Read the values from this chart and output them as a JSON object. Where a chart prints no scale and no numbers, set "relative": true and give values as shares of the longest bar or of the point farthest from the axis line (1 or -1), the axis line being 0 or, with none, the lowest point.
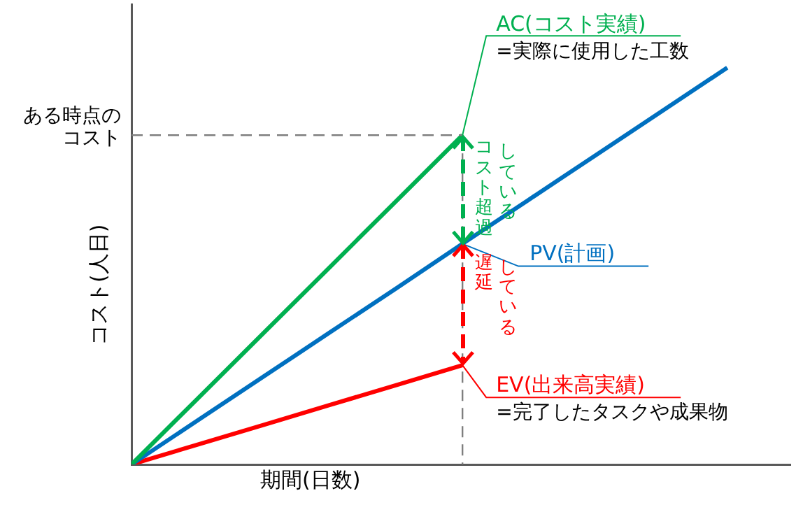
{
  "chart_data": {
    "type": "line",
    "relative": true,
    "xlabel": "期間(日数)",
    "ylabel": "コスト(人日)",
    "legend": false,
    "grid": false,
    "marker": "none",
    "line_style": "solid",
    "categories": [
      null,
      null,
      null,
      null,
      null,
      null,
      null,
      null,
      null,
      null
    ],
    "series": [
      {
        "name": "AC(コスト実績)",
        "color": "#00b050",
        "values": [
          0,
          0.166,
          0.332,
          0.498,
          0.664,
          0.83,
          null,
          null,
          null,
          null
        ]
      },
      {
        "name": "PV(計画)",
        "color": "#0070c0",
        "values": [
          0,
          0.111,
          0.222,
          0.333,
          0.444,
          0.556,
          0.667,
          0.778,
          0.889,
          1
        ]
      },
      {
        "name": "EV(出来高実績)",
        "color": "#ff0000",
        "values": [
          0,
          0.05,
          0.1,
          0.15,
          0.2,
          0.25,
          null,
          null,
          null,
          null
        ]
      }
    ],
    "ref_lines": [
      {
        "axis": "y",
        "value": 0.83,
        "label": "ある時点のコスト",
        "color": "#7f7f7f",
        "line_style": "dashed"
      }
    ],
    "annotations": [
      "=実際に使用した工数",
      "=完了したタスクや成果物",
      "コスト超過",
      "している",
      "遅延",
      "している"
    ]
  }
}
